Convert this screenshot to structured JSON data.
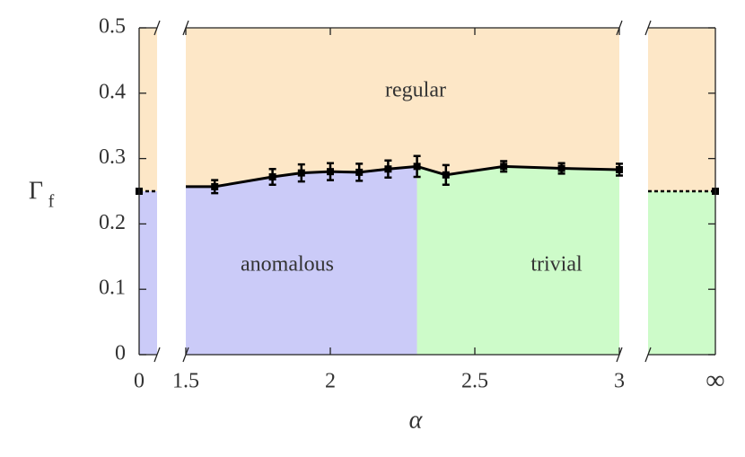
{
  "chart_data": {
    "type": "phase",
    "y_label": "Γ",
    "y_label_sub": "f",
    "x_label": "α",
    "ylim": [
      0,
      0.5
    ],
    "yticks": [
      0,
      0.1,
      0.2,
      0.3,
      0.4,
      0.5
    ],
    "regions": [
      {
        "name": "regular",
        "color": "#fde7c7"
      },
      {
        "name": "anomalous",
        "color": "#cbcbf8"
      },
      {
        "name": "trivial",
        "color": "#cdfbc9"
      }
    ],
    "xlim": [
      1.5,
      3
    ],
    "xticks": [
      1.5,
      2,
      2.5,
      3
    ],
    "boundary_x": 2.3,
    "x": [
      1.5,
      1.6,
      1.8,
      1.9,
      2.0,
      2.1,
      2.2,
      2.3,
      2.4,
      2.6,
      2.8,
      3.0
    ],
    "values": [
      0.257,
      0.257,
      0.272,
      0.278,
      0.28,
      0.279,
      0.284,
      0.288,
      0.275,
      0.288,
      0.285,
      0.283
    ],
    "errors": [
      null,
      0.01,
      0.012,
      0.013,
      0.013,
      0.013,
      0.013,
      0.016,
      0.015,
      0.008,
      0.008,
      0.009
    ],
    "limits": [
      {
        "label": "0",
        "value": 0.25
      },
      {
        "label": "∞",
        "value": 0.25
      }
    ]
  }
}
